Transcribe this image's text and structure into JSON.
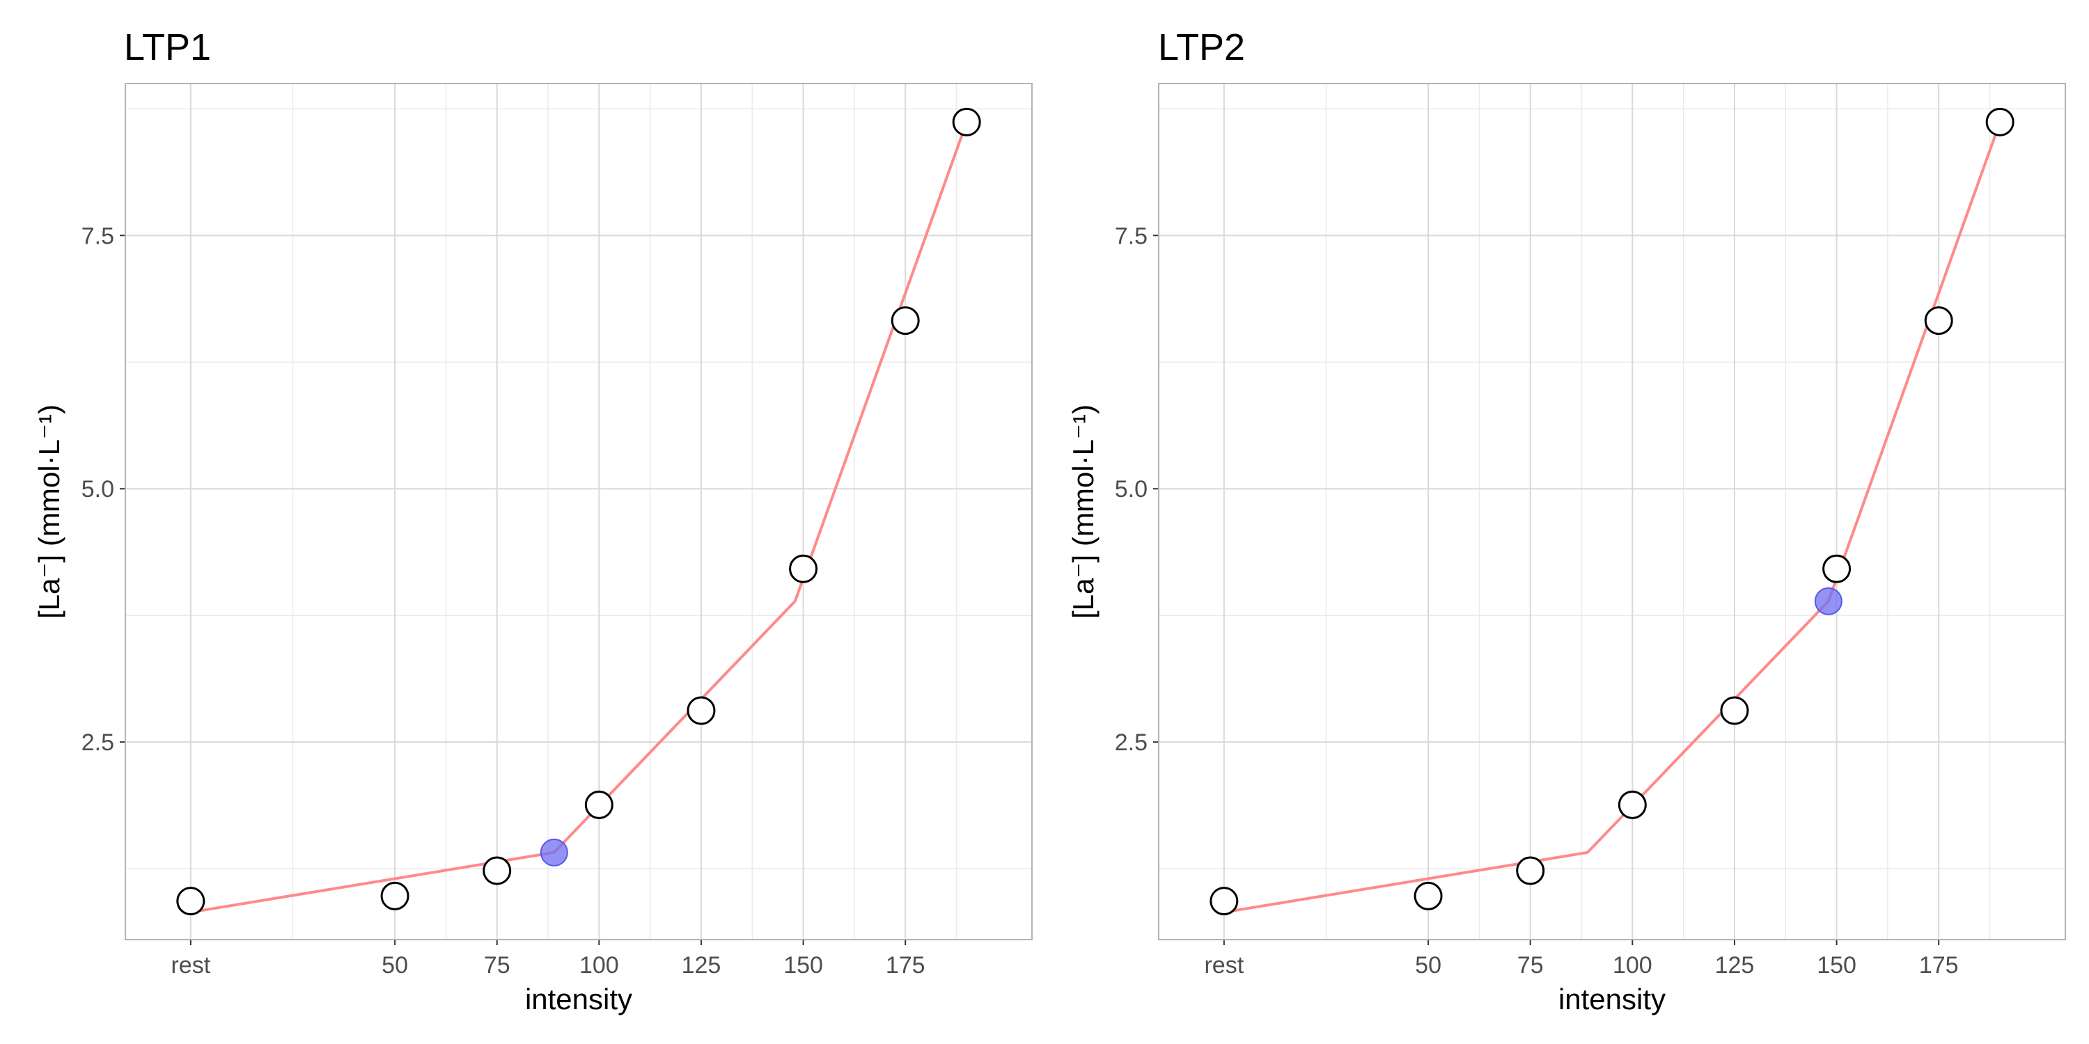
{
  "chart_data": [
    {
      "type": "line",
      "title": "LTP1",
      "xlabel": "intensity",
      "ylabel": "[La⁻] (mmol·L⁻¹)",
      "xlim": [
        0,
        190
      ],
      "ylim": [
        0.55,
        9.0
      ],
      "x_tick_labels": [
        "rest",
        "50",
        "75",
        "100",
        "125",
        "150",
        "175"
      ],
      "x_tick_values": [
        0,
        50,
        75,
        100,
        125,
        150,
        175
      ],
      "y_tick_labels": [
        "2.5",
        "5.0",
        "7.5"
      ],
      "y_tick_values": [
        2.5,
        5.0,
        7.5
      ],
      "grid": true,
      "series": [
        {
          "kind": "observed",
          "x": [
            0,
            50,
            75,
            100,
            125,
            150,
            175,
            190
          ],
          "y": [
            0.93,
            0.98,
            1.23,
            1.88,
            2.81,
            4.21,
            6.66,
            8.62
          ]
        },
        {
          "kind": "fit",
          "x": [
            0,
            89,
            148,
            190
          ],
          "y": [
            0.82,
            1.41,
            3.89,
            8.62
          ]
        },
        {
          "kind": "threshold",
          "x": [
            89
          ],
          "y": [
            1.41
          ]
        }
      ],
      "colors": {
        "fit": "#ff8a8a",
        "threshold": "#6f6ff2",
        "threshold_stroke": "#5a5ae6",
        "observed_stroke": "#000000"
      }
    },
    {
      "type": "line",
      "title": "LTP2",
      "xlabel": "intensity",
      "ylabel": "[La⁻] (mmol·L⁻¹)",
      "xlim": [
        0,
        190
      ],
      "ylim": [
        0.55,
        9.0
      ],
      "x_tick_labels": [
        "rest",
        "50",
        "75",
        "100",
        "125",
        "150",
        "175"
      ],
      "x_tick_values": [
        0,
        50,
        75,
        100,
        125,
        150,
        175
      ],
      "y_tick_labels": [
        "2.5",
        "5.0",
        "7.5"
      ],
      "y_tick_values": [
        2.5,
        5.0,
        7.5
      ],
      "grid": true,
      "series": [
        {
          "kind": "observed",
          "x": [
            0,
            50,
            75,
            100,
            125,
            150,
            175,
            190
          ],
          "y": [
            0.93,
            0.98,
            1.23,
            1.88,
            2.81,
            4.21,
            6.66,
            8.62
          ]
        },
        {
          "kind": "fit",
          "x": [
            0,
            89,
            148,
            190
          ],
          "y": [
            0.82,
            1.41,
            3.89,
            8.62
          ]
        },
        {
          "kind": "threshold",
          "x": [
            148
          ],
          "y": [
            3.89
          ]
        }
      ],
      "colors": {
        "fit": "#ff8a8a",
        "threshold": "#6f6ff2",
        "threshold_stroke": "#5a5ae6",
        "observed_stroke": "#000000"
      }
    }
  ]
}
